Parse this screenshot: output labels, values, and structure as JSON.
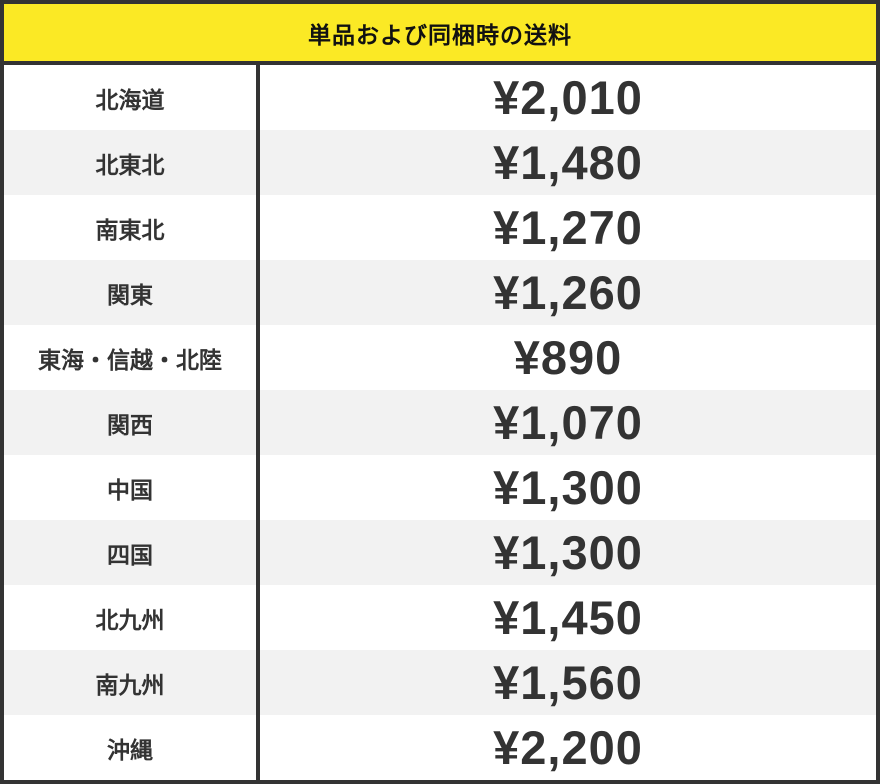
{
  "header": {
    "title": "単品および同梱時の送料"
  },
  "colors": {
    "accent_yellow": "#FBE925",
    "border_dark": "#333333",
    "row_alt_background": "#F2F2F2",
    "row_background": "#FFFFFF",
    "text_dark": "#333333",
    "title_color": "#111111"
  },
  "table": {
    "columns": [
      "region",
      "price"
    ],
    "rows": [
      {
        "region": "北海道",
        "price": "¥2,010"
      },
      {
        "region": "北東北",
        "price": "¥1,480"
      },
      {
        "region": "南東北",
        "price": "¥1,270"
      },
      {
        "region": "関東",
        "price": "¥1,260"
      },
      {
        "region": "東海・信越・北陸",
        "price": "¥890"
      },
      {
        "region": "関西",
        "price": "¥1,070"
      },
      {
        "region": "中国",
        "price": "¥1,300"
      },
      {
        "region": "四国",
        "price": "¥1,300"
      },
      {
        "region": "北九州",
        "price": "¥1,450"
      },
      {
        "region": "南九州",
        "price": "¥1,560"
      },
      {
        "region": "沖縄",
        "price": "¥2,200"
      }
    ]
  }
}
